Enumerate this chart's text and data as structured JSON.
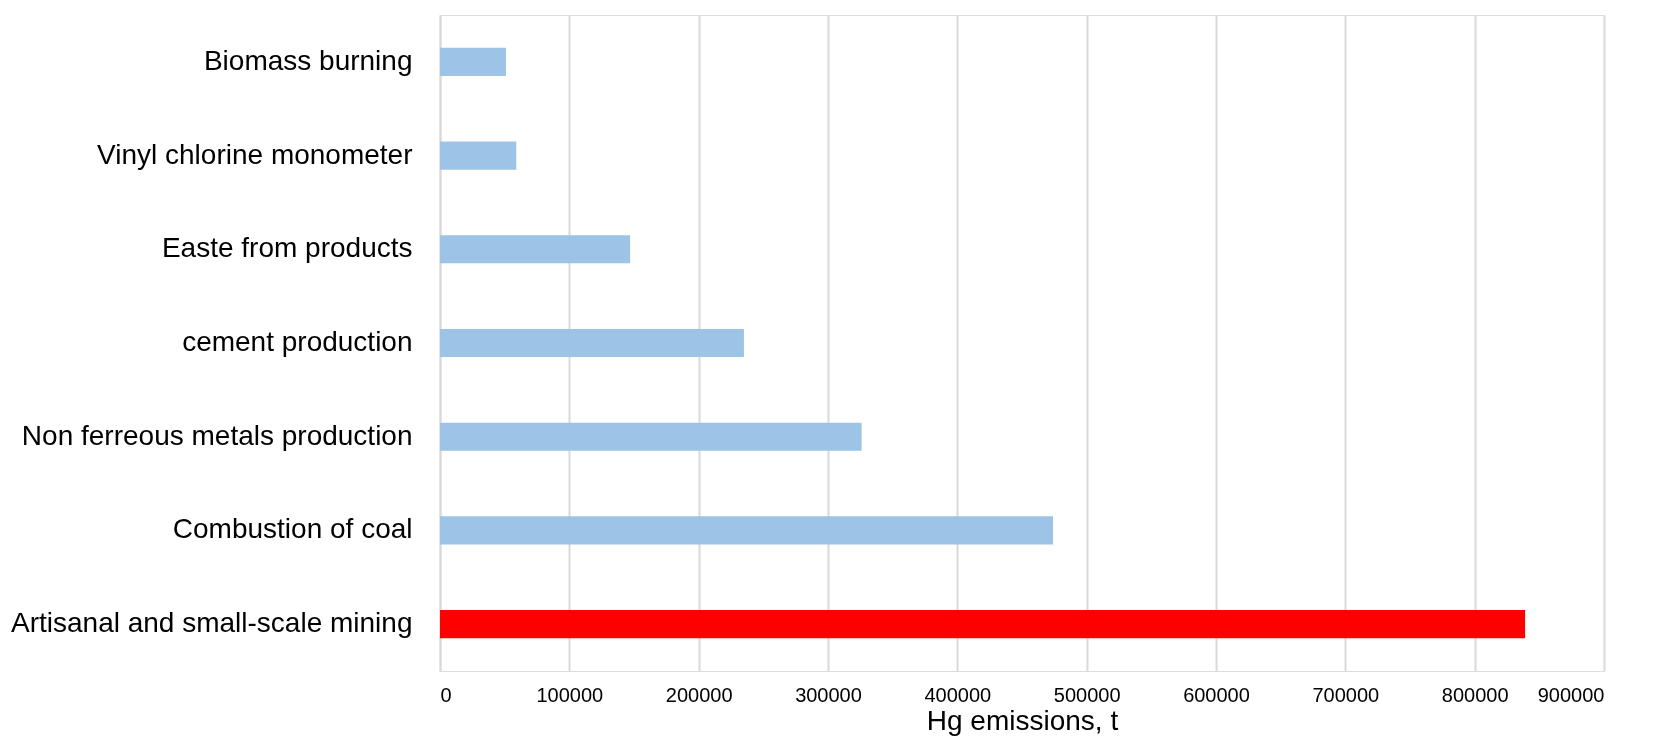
{
  "chart_data": {
    "type": "bar",
    "orientation": "horizontal",
    "xlabel": "Hg emissions, t",
    "categories": [
      "Biomass burning",
      "Vinyl chlorine monometer",
      "Easte from products",
      "cement production",
      "Non ferreous metals production",
      "Combustion of coal",
      "Artisanal and small-scale mining"
    ],
    "values": [
      51000,
      59000,
      147000,
      235000,
      326000,
      474000,
      839000
    ],
    "colors": [
      "#9dc3e6",
      "#9dc3e6",
      "#9dc3e6",
      "#9dc3e6",
      "#9dc3e6",
      "#9dc3e6",
      "#ff0000"
    ],
    "xlim": [
      0,
      900000
    ],
    "xticks": [
      0,
      100000,
      200000,
      300000,
      400000,
      500000,
      600000,
      700000,
      800000,
      900000
    ],
    "grid": "x"
  }
}
